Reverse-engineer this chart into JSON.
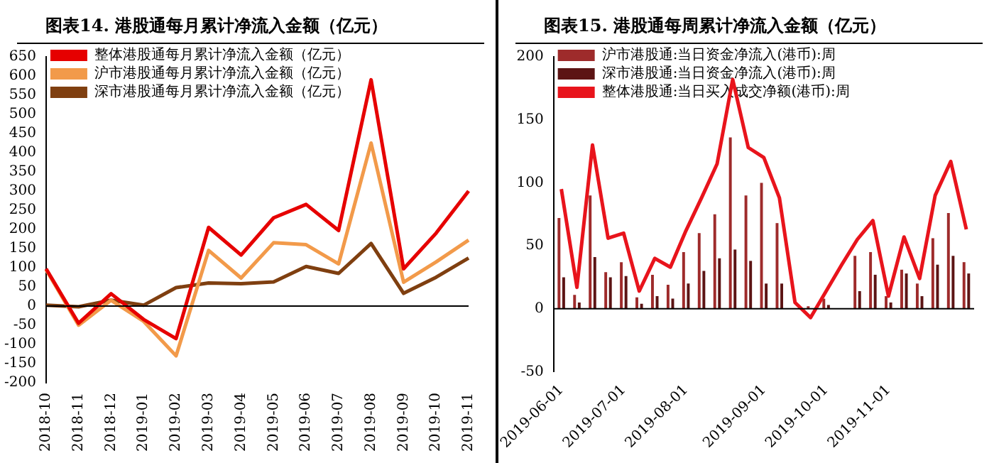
{
  "chart_data": [
    {
      "type": "line",
      "title": "图表14.  港股通每月累计净流入金额（亿元）",
      "categories": [
        "2018-10",
        "2018-11",
        "2018-12",
        "2019-01",
        "2019-02",
        "2019-03",
        "2019-04",
        "2019-05",
        "2019-06",
        "2019-07",
        "2019-08",
        "2019-09",
        "2019-10",
        "2019-11"
      ],
      "series": [
        {
          "name": "整体港股通每月累计净流入金额（亿元）",
          "color": "#e60000",
          "values": [
            97,
            -45,
            32,
            -35,
            -85,
            205,
            133,
            230,
            265,
            197,
            590,
            97,
            190,
            300
          ]
        },
        {
          "name": "沪市港股通每月累计净流入金额（亿元）",
          "color": "#f29a4a",
          "values": [
            95,
            -50,
            15,
            -40,
            -130,
            145,
            73,
            165,
            160,
            110,
            425,
            62,
            115,
            172
          ]
        },
        {
          "name": "深市港股通每月累计净流入金额（亿元）",
          "color": "#7f3f10",
          "values": [
            2,
            -2,
            15,
            2,
            48,
            60,
            58,
            63,
            103,
            85,
            163,
            33,
            75,
            125
          ]
        }
      ],
      "ylim": [
        -200,
        650
      ],
      "yticks": [
        -200,
        -150,
        -100,
        -50,
        0,
        50,
        100,
        150,
        200,
        250,
        300,
        350,
        400,
        450,
        500,
        550,
        600,
        650
      ],
      "grid": false,
      "legend": "top left",
      "marker": "none",
      "ref_lines": [
        {
          "axis": "y",
          "value": 0,
          "color": "#000000"
        }
      ]
    },
    {
      "type": "bar",
      "title": "图表15.  港股通每周累计净流入金额（亿元）",
      "categories": [
        "2019-06-01",
        null,
        null,
        null,
        "2019-07-01",
        null,
        null,
        null,
        "2019-08-01",
        null,
        null,
        null,
        null,
        "2019-09-01",
        null,
        null,
        null,
        "2019-10-01",
        null,
        null,
        null,
        "2019-11-01",
        null,
        null,
        null,
        null,
        null
      ],
      "series": [
        {
          "name": "沪市港股通:当日资金净流入(港币):周",
          "color": "#9e2b2b",
          "values": [
            72,
            11,
            90,
            29,
            37,
            9,
            27,
            19,
            45,
            60,
            75,
            136,
            90,
            100,
            68,
            null,
            2,
            8,
            null,
            42,
            45,
            10,
            31,
            20,
            56,
            76,
            37
          ]
        },
        {
          "name": "深市港股通:当日资金净流入(港币):周",
          "color": "#5c1414",
          "values": [
            25,
            5,
            41,
            25,
            26,
            4,
            10,
            8,
            20,
            30,
            40,
            47,
            38,
            20,
            20,
            null,
            null,
            3,
            null,
            14,
            27,
            5,
            28,
            10,
            35,
            42,
            28
          ]
        },
        {
          "name": "整体港股通:当日买入成交净额(港币):周",
          "type": "line",
          "color": "#e8141c",
          "values": [
            95,
            17,
            130,
            56,
            60,
            14,
            40,
            33,
            62,
            88,
            115,
            182,
            128,
            120,
            88,
            5,
            -7,
            14,
            35,
            55,
            70,
            10,
            57,
            24,
            90,
            117,
            63
          ]
        }
      ],
      "ylim": [
        -50,
        200
      ],
      "yticks": [
        -50,
        0,
        50,
        100,
        150,
        200
      ],
      "grid": false,
      "legend": "top left",
      "marker": "none",
      "ref_lines": [
        {
          "axis": "y",
          "value": 0,
          "color": "#000000"
        }
      ]
    }
  ]
}
